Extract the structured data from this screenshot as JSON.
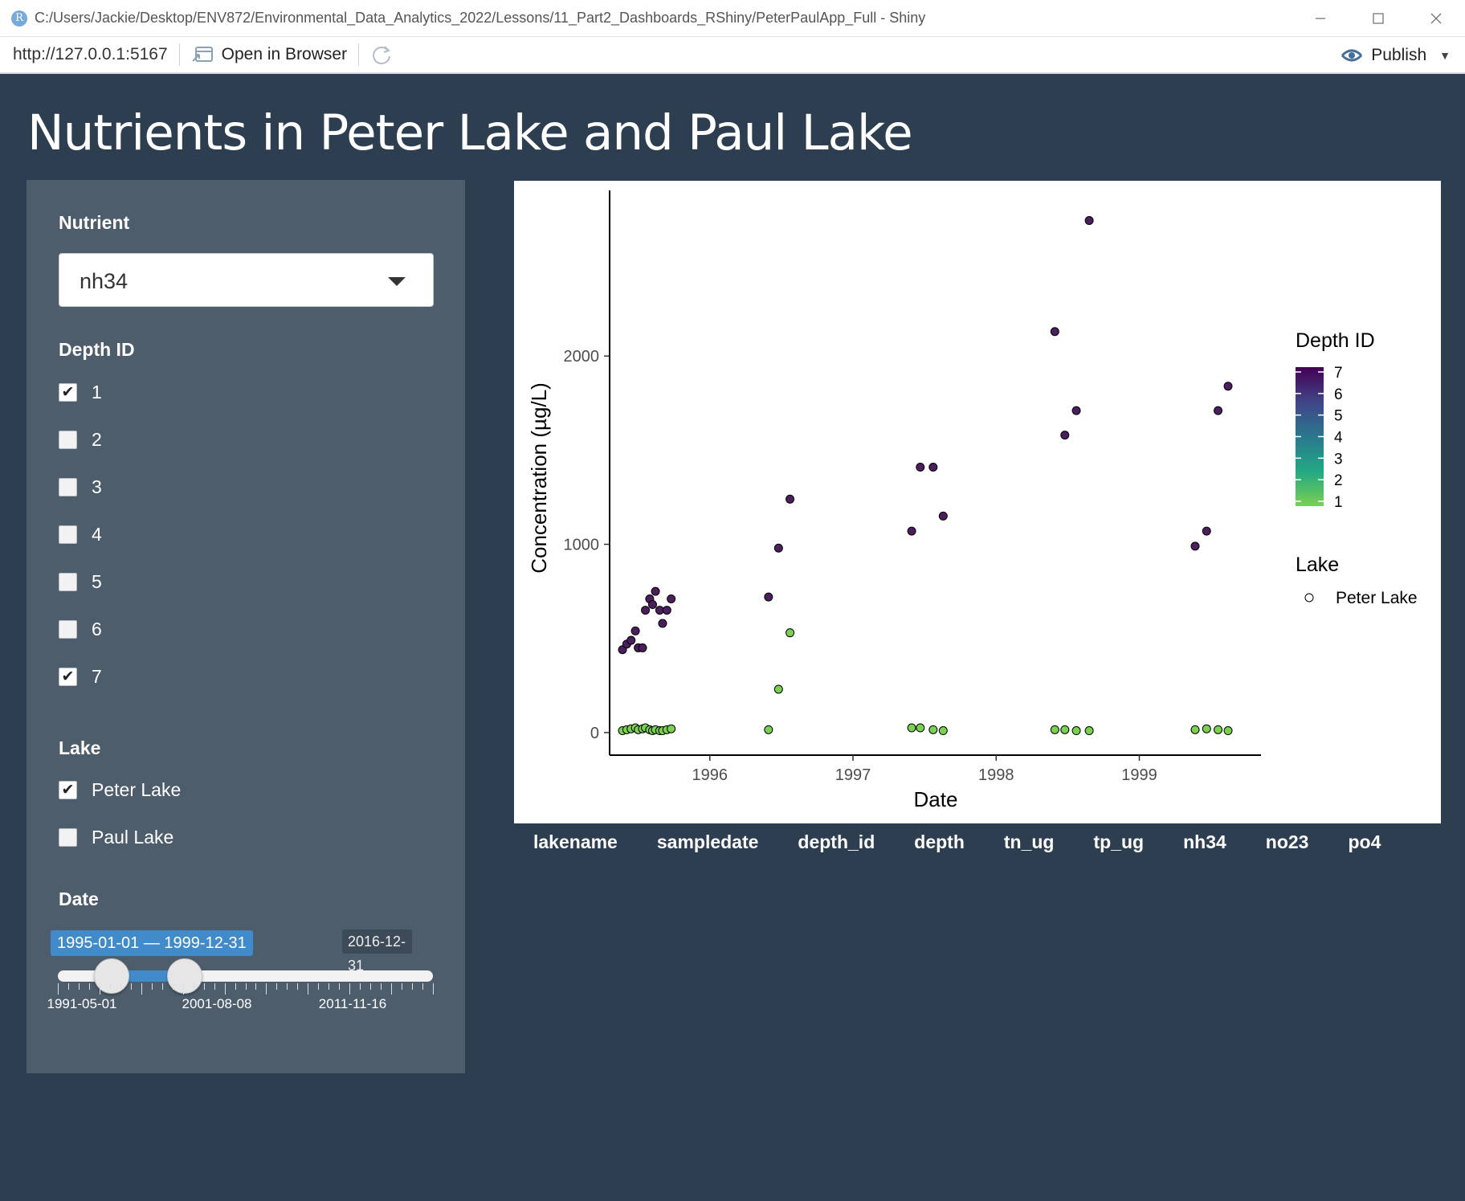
{
  "window": {
    "title": "C:/Users/Jackie/Desktop/ENV872/Environmental_Data_Analytics_2022/Lessons/11_Part2_Dashboards_RShiny/PeterPaulApp_Full - Shiny",
    "app_icon": "R"
  },
  "toolbar": {
    "url": "http://127.0.0.1:5167",
    "open_in_browser": "Open in Browser",
    "publish": "Publish"
  },
  "page": {
    "title": "Nutrients in Peter Lake and Paul Lake"
  },
  "sidebar": {
    "nutrient_label": "Nutrient",
    "nutrient_value": "nh34",
    "depth_label": "Depth ID",
    "depth_options": [
      {
        "label": "1",
        "checked": true
      },
      {
        "label": "2",
        "checked": false
      },
      {
        "label": "3",
        "checked": false
      },
      {
        "label": "4",
        "checked": false
      },
      {
        "label": "5",
        "checked": false
      },
      {
        "label": "6",
        "checked": false
      },
      {
        "label": "7",
        "checked": true
      }
    ],
    "lake_label": "Lake",
    "lake_options": [
      {
        "label": "Peter Lake",
        "checked": true
      },
      {
        "label": "Paul Lake",
        "checked": false
      }
    ],
    "date_label": "Date",
    "date_range": "1995-01-01 — 1999-12-31",
    "date_max": "2016-12-31",
    "slider": {
      "min": "1991-05-01",
      "max": "2016-12-31",
      "from": "1995-01-01",
      "to": "1999-12-31",
      "tick_labels": [
        "1991-05-01",
        "2001-08-08",
        "2011-11-16"
      ]
    }
  },
  "chart_data": {
    "type": "scatter",
    "title": "",
    "xlabel": "Date",
    "ylabel": "Concentration (µg/L)",
    "x_ticks": [
      "1996",
      "1997",
      "1998",
      "1999"
    ],
    "y_ticks": [
      0,
      1000,
      2000
    ],
    "xlim": [
      1995.3,
      1999.85
    ],
    "ylim": [
      -120,
      2880
    ],
    "legend": {
      "color_title": "Depth ID",
      "color_values": [
        1,
        2,
        3,
        4,
        5,
        6,
        7
      ],
      "shape_title": "Lake",
      "shape_entries": [
        "Peter Lake"
      ],
      "placement": "right"
    },
    "colors": {
      "depth_1": "#7ad151",
      "depth_7": "#4b1e5e"
    },
    "series": [
      {
        "depth_id": 7,
        "points": [
          [
            1995.39,
            440
          ],
          [
            1995.42,
            470
          ],
          [
            1995.45,
            490
          ],
          [
            1995.48,
            540
          ],
          [
            1995.5,
            450
          ],
          [
            1995.53,
            450
          ],
          [
            1995.55,
            650
          ],
          [
            1995.58,
            710
          ],
          [
            1995.6,
            680
          ],
          [
            1995.62,
            750
          ],
          [
            1995.65,
            650
          ],
          [
            1995.67,
            580
          ],
          [
            1995.7,
            650
          ],
          [
            1995.73,
            710
          ],
          [
            1996.41,
            720
          ],
          [
            1996.48,
            980
          ],
          [
            1996.56,
            1240
          ],
          [
            1997.41,
            1070
          ],
          [
            1997.47,
            1410
          ],
          [
            1997.56,
            1410
          ],
          [
            1997.63,
            1150
          ],
          [
            1998.41,
            2130
          ],
          [
            1998.48,
            1580
          ],
          [
            1998.56,
            1710
          ],
          [
            1998.65,
            2720
          ],
          [
            1999.39,
            990
          ],
          [
            1999.47,
            1070
          ],
          [
            1999.55,
            1710
          ],
          [
            1999.62,
            1840
          ]
        ]
      },
      {
        "depth_id": 1,
        "points": [
          [
            1995.39,
            10
          ],
          [
            1995.42,
            15
          ],
          [
            1995.45,
            20
          ],
          [
            1995.48,
            25
          ],
          [
            1995.5,
            15
          ],
          [
            1995.53,
            20
          ],
          [
            1995.55,
            25
          ],
          [
            1995.58,
            15
          ],
          [
            1995.6,
            10
          ],
          [
            1995.62,
            15
          ],
          [
            1995.65,
            10
          ],
          [
            1995.67,
            10
          ],
          [
            1995.7,
            15
          ],
          [
            1995.73,
            20
          ],
          [
            1996.41,
            15
          ],
          [
            1996.48,
            230
          ],
          [
            1996.56,
            530
          ],
          [
            1997.41,
            25
          ],
          [
            1997.47,
            25
          ],
          [
            1997.56,
            15
          ],
          [
            1997.63,
            10
          ],
          [
            1998.41,
            15
          ],
          [
            1998.48,
            15
          ],
          [
            1998.56,
            10
          ],
          [
            1998.65,
            10
          ],
          [
            1999.39,
            15
          ],
          [
            1999.47,
            20
          ],
          [
            1999.55,
            15
          ],
          [
            1999.62,
            10
          ]
        ]
      }
    ]
  },
  "table": {
    "columns": [
      "lakename",
      "sampledate",
      "depth_id",
      "depth",
      "tn_ug",
      "tp_ug",
      "nh34",
      "no23",
      "po4"
    ]
  }
}
